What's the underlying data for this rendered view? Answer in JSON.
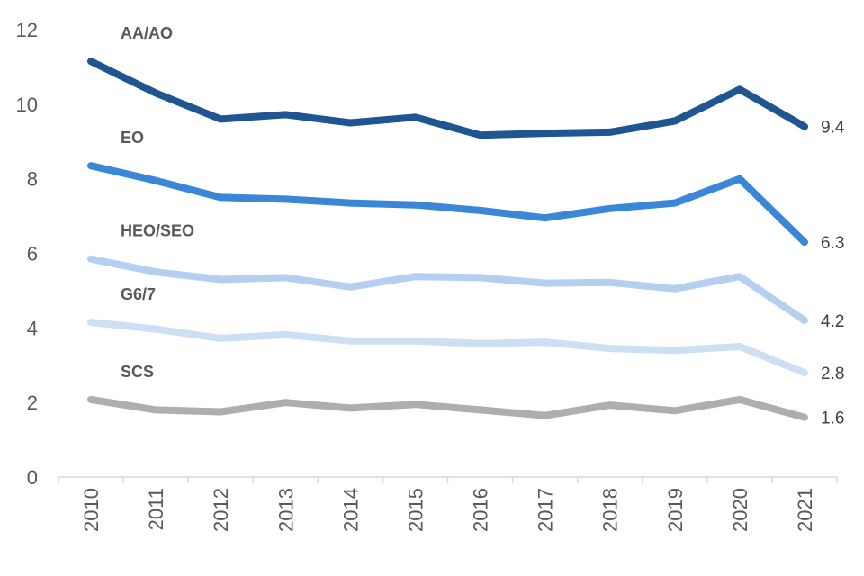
{
  "chart_data": {
    "type": "line",
    "title": "",
    "xlabel": "",
    "ylabel": "",
    "x": [
      "2010",
      "2011",
      "2012",
      "2013",
      "2014",
      "2015",
      "2016",
      "2017",
      "2018",
      "2019",
      "2020",
      "2021"
    ],
    "ylim": [
      0,
      12
    ],
    "yticks": [
      "0",
      "2",
      "4",
      "6",
      "8",
      "10",
      "12"
    ],
    "grid": false,
    "legend": "none",
    "series": [
      {
        "name": "AA/AO",
        "color": "#1f5591",
        "end_label": "9.4",
        "values": [
          11.15,
          10.3,
          9.6,
          9.72,
          9.5,
          9.65,
          9.17,
          9.22,
          9.25,
          9.55,
          10.4,
          9.4
        ]
      },
      {
        "name": "EO",
        "color": "#3a87d8",
        "end_label": "6.3",
        "values": [
          8.35,
          7.95,
          7.5,
          7.45,
          7.35,
          7.3,
          7.15,
          6.95,
          7.2,
          7.35,
          8.0,
          6.3
        ]
      },
      {
        "name": "HEO/SEO",
        "color": "#b4cff0",
        "end_label": "4.2",
        "values": [
          5.85,
          5.5,
          5.3,
          5.35,
          5.1,
          5.38,
          5.35,
          5.2,
          5.22,
          5.05,
          5.38,
          4.2
        ]
      },
      {
        "name": "G6/7",
        "color": "#cddff3",
        "end_label": "2.8",
        "values": [
          4.15,
          3.97,
          3.72,
          3.82,
          3.65,
          3.65,
          3.58,
          3.62,
          3.45,
          3.4,
          3.5,
          2.8
        ]
      },
      {
        "name": "SCS",
        "color": "#b1adae",
        "end_label": "1.6",
        "values": [
          2.08,
          1.8,
          1.75,
          2.0,
          1.85,
          1.95,
          1.8,
          1.65,
          1.93,
          1.78,
          2.08,
          1.6
        ]
      }
    ]
  }
}
